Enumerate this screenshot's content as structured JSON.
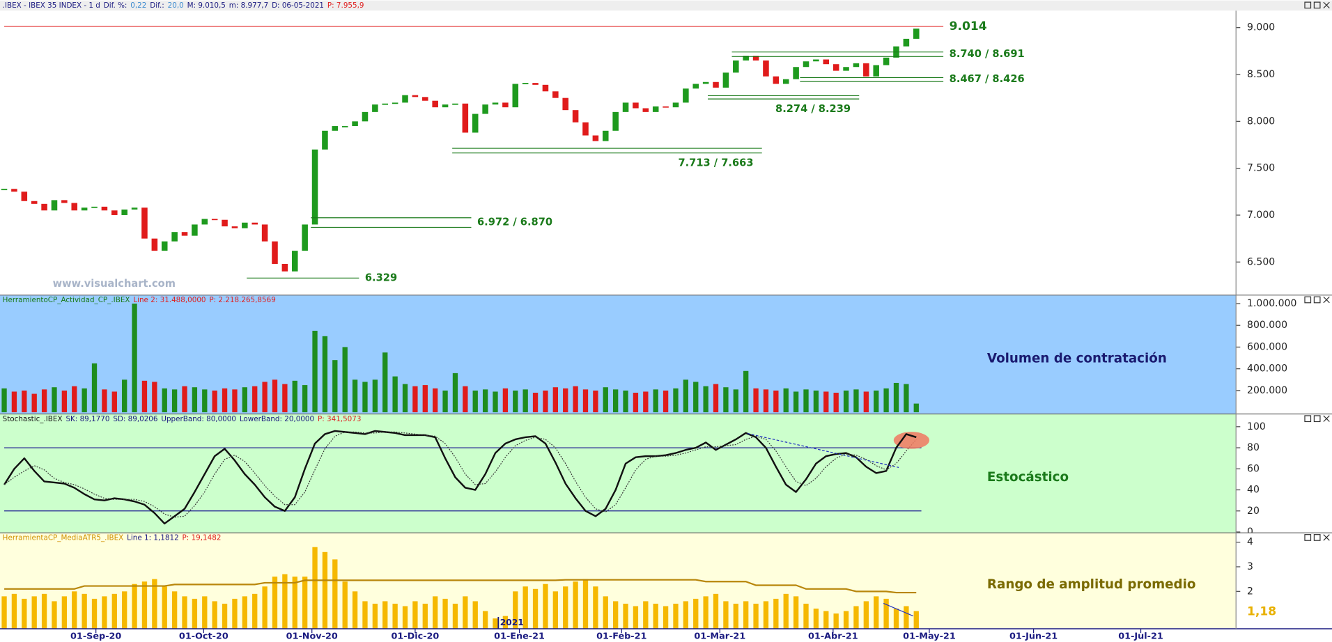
{
  "chart_data": [
    {
      "type": "candlestick",
      "header": [
        {
          "text": ".IBEX - IBEX 35 INDEX -  1 d",
          "color": "#1a1a80"
        },
        {
          "text": "Dif. %:",
          "color": "#1a1a80"
        },
        {
          "text": "0,22",
          "color": "#3a8ad0"
        },
        {
          "text": "Dif.:",
          "color": "#1a1a80"
        },
        {
          "text": "20,0",
          "color": "#3a8ad0"
        },
        {
          "text": "M: 9.010,5",
          "color": "#1a1a80"
        },
        {
          "text": "m: 8.977,7",
          "color": "#1a1a80"
        },
        {
          "text": "D: 06-05-2021",
          "color": "#1a1a80"
        },
        {
          "text": "P: 7.955,9",
          "color": "#e02020"
        }
      ],
      "watermark": "www.visualchart.com",
      "background": "#ffffff",
      "up_color": "#1e9a1e",
      "down_color": "#e01b1b",
      "values": [
        7280,
        7250,
        7150,
        7120,
        7050,
        7160,
        7130,
        7050,
        7080,
        7090,
        7050,
        7000,
        7060,
        7080,
        6750,
        6620,
        6720,
        6820,
        6780,
        6900,
        6960,
        6950,
        6880,
        6860,
        6920,
        6900,
        6720,
        6480,
        6400,
        6620,
        6900,
        7700,
        7900,
        7950,
        7950,
        8000,
        8100,
        8180,
        8190,
        8200,
        8280,
        8260,
        8220,
        8150,
        8180,
        8190,
        7880,
        8080,
        8180,
        8200,
        8150,
        8400,
        8410,
        8390,
        8320,
        8250,
        8120,
        7990,
        7850,
        7790,
        7900,
        8100,
        8200,
        8140,
        8100,
        8160,
        8150,
        8200,
        8350,
        8400,
        8420,
        8360,
        8520,
        8650,
        8700,
        8650,
        8480,
        8400,
        8450,
        8580,
        8640,
        8660,
        8610,
        8540,
        8580,
        8620,
        8480,
        8600,
        8680,
        8800,
        8880,
        8990
      ],
      "xlim": [
        -0.42,
        122.9
      ],
      "ylim": [
        6147,
        9181
      ],
      "yticks": [
        {
          "value": 6500,
          "label": "6.500"
        },
        {
          "value": 7000,
          "label": "7.000"
        },
        {
          "value": 7500,
          "label": "7.500"
        },
        {
          "value": 8000,
          "label": "8.000"
        },
        {
          "value": 8500,
          "label": "8.500"
        },
        {
          "value": 9000,
          "label": "9.000"
        }
      ],
      "levels": [
        {
          "label": "9.014",
          "values": [
            9014
          ],
          "from": 0,
          "to": 93.7,
          "color": "#e02020",
          "label_position": "right"
        },
        {
          "label": "8.740 / 8.691",
          "values": [
            8740,
            8691
          ],
          "from": 72.6,
          "to": 93.7,
          "color": "#1a7a1a",
          "label_position": "right"
        },
        {
          "label": "8.467 / 8.426",
          "values": [
            8467,
            8426
          ],
          "from": 79.4,
          "to": 93.7,
          "color": "#1a7a1a",
          "label_position": "right"
        },
        {
          "label": "8.274 / 8.239",
          "values": [
            8274,
            8239
          ],
          "from": 70.2,
          "to": 85.3,
          "color": "#1a7a1a",
          "label_position": "below"
        },
        {
          "label": "7.713 / 7.663",
          "values": [
            7713,
            7663
          ],
          "from": 44.7,
          "to": 75.6,
          "color": "#1a7a1a",
          "label_position": "below"
        },
        {
          "label": "6.972 / 6.870",
          "values": [
            6972,
            6870
          ],
          "from": 30.6,
          "to": 46.6,
          "color": "#1a7a1a",
          "label_position": "right"
        },
        {
          "label": "6.329",
          "values": [
            6329
          ],
          "from": 24.2,
          "to": 35.4,
          "color": "#1a7a1a",
          "label_position": "right"
        }
      ]
    },
    {
      "type": "bar",
      "header": [
        {
          "text": "HerramientoCP_Actividad_CP_.IBEX",
          "color": "#1a7a1a"
        },
        {
          "text": "Line 2: 31.488,0000",
          "color": "#e02020"
        },
        {
          "text": "P: 2.218.265,8569",
          "color": "#e02020"
        }
      ],
      "panel_title": "Volumen de contratación",
      "title_color": "#1a1a70",
      "background": "#99ccff",
      "up_color": "#1e8c1e",
      "down_color": "#e01b1b",
      "values": [
        220000,
        190000,
        200000,
        170000,
        210000,
        230000,
        200000,
        240000,
        220000,
        450000,
        210000,
        190000,
        300000,
        1000000,
        290000,
        280000,
        220000,
        210000,
        240000,
        230000,
        210000,
        200000,
        220000,
        210000,
        230000,
        240000,
        280000,
        300000,
        260000,
        290000,
        250000,
        750000,
        700000,
        480000,
        600000,
        300000,
        280000,
        300000,
        550000,
        330000,
        260000,
        240000,
        250000,
        220000,
        200000,
        360000,
        240000,
        200000,
        210000,
        190000,
        220000,
        200000,
        210000,
        180000,
        200000,
        230000,
        220000,
        240000,
        210000,
        200000,
        230000,
        210000,
        200000,
        180000,
        190000,
        210000,
        200000,
        220000,
        300000,
        280000,
        240000,
        260000,
        230000,
        210000,
        380000,
        220000,
        210000,
        200000,
        220000,
        190000,
        210000,
        200000,
        190000,
        180000,
        200000,
        210000,
        190000,
        200000,
        220000,
        270000,
        260000,
        80000
      ],
      "xlim": [
        -0.42,
        122.9
      ],
      "ylim": [
        0,
        1000000
      ],
      "yticks": [
        {
          "value": 200000,
          "label": "200.000"
        },
        {
          "value": 400000,
          "label": "400.000"
        },
        {
          "value": 600000,
          "label": "600.000"
        },
        {
          "value": 800000,
          "label": "800.000"
        },
        {
          "value": 1000000,
          "label": "1.000.000"
        }
      ]
    },
    {
      "type": "line",
      "header": [
        {
          "text": "Stochastic_.IBEX",
          "color": "#1a1a1a"
        },
        {
          "text": "SK: 89,1770",
          "color": "#1a1a80"
        },
        {
          "text": "SD: 89,0206",
          "color": "#1a1a80"
        },
        {
          "text": "UpperBand: 80,0000",
          "color": "#1a1a80"
        },
        {
          "text": "LowerBand: 20,0000",
          "color": "#1a1a80"
        },
        {
          "text": "P: 341,5073",
          "color": "#e02020"
        }
      ],
      "panel_title": "Estocástico",
      "title_color": "#1a7a1a",
      "background": "#ccffcc",
      "series": [
        {
          "color": "#111111",
          "style": "solid",
          "values": [
            45,
            60,
            70,
            58,
            48,
            47,
            46,
            42,
            36,
            31,
            30,
            32,
            31,
            29,
            26,
            18,
            8,
            15,
            22,
            38,
            55,
            72,
            79,
            68,
            55,
            45,
            33,
            24,
            20,
            33,
            60,
            84,
            93,
            96,
            95,
            94,
            93,
            96,
            95,
            94,
            92,
            92,
            92,
            90,
            70,
            52,
            42,
            40,
            55,
            75,
            84,
            88,
            90,
            91,
            84,
            66,
            46,
            32,
            20,
            15,
            22,
            40,
            65,
            71,
            72,
            72,
            73,
            75,
            78,
            80,
            85,
            78,
            83,
            88,
            94,
            90,
            80,
            62,
            45,
            38,
            50,
            65,
            72,
            74,
            75,
            71,
            62,
            56,
            58,
            80,
            93,
            90
          ]
        },
        {
          "color": "#333333",
          "style": "dotted",
          "values": [
            45,
            52,
            58,
            63,
            59,
            51,
            47,
            45,
            41,
            36,
            32,
            31,
            31,
            31,
            29,
            24,
            17,
            14,
            15,
            25,
            38,
            55,
            69,
            73,
            67,
            56,
            44,
            34,
            26,
            26,
            38,
            59,
            79,
            91,
            95,
            95,
            94,
            94,
            95,
            95,
            94,
            93,
            92,
            91,
            84,
            71,
            55,
            45,
            46,
            57,
            71,
            82,
            87,
            90,
            88,
            80,
            65,
            48,
            33,
            22,
            19,
            26,
            42,
            59,
            69,
            72,
            72,
            73,
            75,
            78,
            81,
            81,
            82,
            83,
            88,
            91,
            88,
            77,
            62,
            48,
            44,
            51,
            62,
            70,
            74,
            73,
            69,
            63,
            59,
            65,
            77,
            88
          ]
        }
      ],
      "bands": [
        80,
        20
      ],
      "band_color": "#1a1a90",
      "xlim": [
        -0.42,
        122.9
      ],
      "ylim": [
        0,
        100
      ],
      "yticks": [
        0,
        20,
        40,
        60,
        80,
        100
      ]
    },
    {
      "type": "bar",
      "header": [
        {
          "text": "HerramientaCP_MediaATR5_.IBEX",
          "color": "#d09000"
        },
        {
          "text": "Line 1: 1,1812",
          "color": "#1a1a80"
        },
        {
          "text": "P: 19,1482",
          "color": "#e02020"
        }
      ],
      "panel_title": "Rango de amplitud promedio",
      "title_color": "#7a6a00",
      "background": "#ffffdd",
      "color": "#f5b800",
      "values": [
        1.8,
        1.9,
        1.7,
        1.8,
        1.9,
        1.6,
        1.8,
        2.0,
        1.9,
        1.7,
        1.8,
        1.9,
        2.0,
        2.3,
        2.4,
        2.5,
        2.2,
        2.0,
        1.8,
        1.7,
        1.8,
        1.6,
        1.5,
        1.7,
        1.8,
        1.9,
        2.2,
        2.6,
        2.7,
        2.6,
        2.6,
        3.8,
        3.6,
        3.3,
        2.4,
        2.0,
        1.6,
        1.5,
        1.6,
        1.5,
        1.4,
        1.6,
        1.5,
        1.8,
        1.7,
        1.5,
        1.8,
        1.6,
        1.2,
        0.9,
        1.0,
        2.0,
        2.2,
        2.1,
        2.3,
        2.0,
        2.2,
        2.4,
        2.5,
        2.2,
        1.8,
        1.6,
        1.5,
        1.4,
        1.6,
        1.5,
        1.4,
        1.5,
        1.6,
        1.7,
        1.8,
        1.9,
        1.6,
        1.5,
        1.6,
        1.5,
        1.6,
        1.7,
        1.9,
        1.8,
        1.5,
        1.3,
        1.2,
        1.1,
        1.2,
        1.4,
        1.6,
        1.8,
        1.7,
        1.3,
        1.4,
        1.2
      ],
      "line": {
        "color": "#b8860b",
        "values": [
          2.1,
          2.1,
          2.1,
          2.1,
          2.1,
          2.1,
          2.1,
          2.1,
          2.22,
          2.22,
          2.22,
          2.22,
          2.22,
          2.22,
          2.22,
          2.22,
          2.22,
          2.28,
          2.28,
          2.28,
          2.28,
          2.28,
          2.28,
          2.28,
          2.28,
          2.28,
          2.35,
          2.35,
          2.35,
          2.35,
          2.45,
          2.45,
          2.45,
          2.45,
          2.45,
          2.45,
          2.45,
          2.45,
          2.45,
          2.45,
          2.45,
          2.45,
          2.45,
          2.45,
          2.45,
          2.45,
          2.45,
          2.45,
          2.45,
          2.45,
          2.45,
          2.45,
          2.45,
          2.45,
          2.45,
          2.45,
          2.47,
          2.47,
          2.47,
          2.47,
          2.47,
          2.47,
          2.47,
          2.47,
          2.47,
          2.47,
          2.47,
          2.47,
          2.47,
          2.47,
          2.4,
          2.4,
          2.4,
          2.4,
          2.4,
          2.25,
          2.25,
          2.25,
          2.25,
          2.25,
          2.1,
          2.1,
          2.1,
          2.1,
          2.1,
          2.0,
          2.0,
          2.0,
          2.0,
          1.95,
          1.95,
          1.95
        ]
      },
      "last_value_label": {
        "value": 1.18,
        "label": "1,18"
      },
      "year_marker": {
        "label": "2021",
        "index": 49.3
      },
      "xlim": [
        -0.42,
        122.9
      ],
      "ylim": [
        0.48,
        4
      ],
      "yticks": [
        2,
        3,
        4
      ],
      "xticks": [
        {
          "value": 9.15,
          "label": "01-Sep-20"
        },
        {
          "value": 19.9,
          "label": "01-Oct-20"
        },
        {
          "value": 30.7,
          "label": "01-Nov-20"
        },
        {
          "value": 41.0,
          "label": "01-Dic-20"
        },
        {
          "value": 51.4,
          "label": "01-Ene-21"
        },
        {
          "value": 61.6,
          "label": "01-Feb-21"
        },
        {
          "value": 71.4,
          "label": "01-Mar-21"
        },
        {
          "value": 82.7,
          "label": "01-Abr-21"
        },
        {
          "value": 92.3,
          "label": "01-May-21"
        },
        {
          "value": 102.7,
          "label": "01-Jun-21"
        },
        {
          "value": 113.4,
          "label": "01-Jul-21"
        }
      ]
    }
  ]
}
